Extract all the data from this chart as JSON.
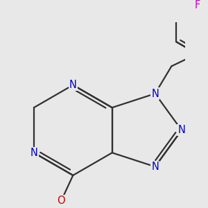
{
  "bg_color": "#e8e8e8",
  "bond_color": "#303030",
  "bond_width": 1.6,
  "atom_colors": {
    "N": "#0000cc",
    "O": "#cc0000",
    "F": "#cc00cc",
    "C": "#303030"
  },
  "font_size": 10.5
}
